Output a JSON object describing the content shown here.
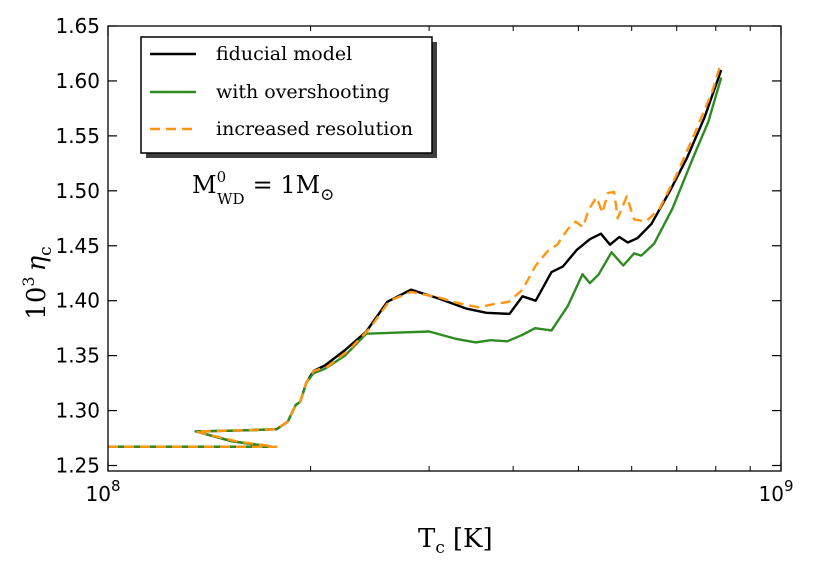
{
  "chart_data": {
    "type": "line",
    "xscale": "log",
    "xlim": [
      100000000,
      1000000000
    ],
    "ylim": [
      1.245,
      1.65
    ],
    "x_ticks": [
      {
        "value": 100000000,
        "base": "10",
        "exp": "8"
      },
      {
        "value": 1000000000,
        "base": "10",
        "exp": "9"
      }
    ],
    "y_ticks": [
      {
        "value": 1.25,
        "label": "1.25"
      },
      {
        "value": 1.3,
        "label": "1.30"
      },
      {
        "value": 1.35,
        "label": "1.35"
      },
      {
        "value": 1.4,
        "label": "1.40"
      },
      {
        "value": 1.45,
        "label": "1.45"
      },
      {
        "value": 1.5,
        "label": "1.50"
      },
      {
        "value": 1.55,
        "label": "1.55"
      },
      {
        "value": 1.6,
        "label": "1.60"
      },
      {
        "value": 1.65,
        "label": "1.65"
      }
    ],
    "xlabel": {
      "main": "T",
      "sub": "c",
      "unit": "[K]"
    },
    "ylabel": {
      "base": "10",
      "exp": "3",
      "main": "η",
      "sub": "c"
    },
    "annotation": {
      "main": "M",
      "sup": "0",
      "sub": "WD",
      "equals": "= 1M",
      "symbol": "⊙"
    },
    "legend_position": "top-left",
    "series": [
      {
        "name": "fiducial model",
        "color": "#000000",
        "dash": "solid",
        "points": [
          [
            100000000,
            1.267
          ],
          [
            140000000,
            1.267
          ],
          [
            175000000,
            1.267
          ],
          [
            153000000,
            1.272
          ],
          [
            135000000,
            1.281
          ],
          [
            160000000,
            1.282
          ],
          [
            178000000,
            1.283
          ],
          [
            185000000,
            1.29
          ],
          [
            190000000,
            1.305
          ],
          [
            193000000,
            1.308
          ],
          [
            197000000,
            1.325
          ],
          [
            202000000,
            1.336
          ],
          [
            210000000,
            1.341
          ],
          [
            225000000,
            1.355
          ],
          [
            242000000,
            1.372
          ],
          [
            260000000,
            1.399
          ],
          [
            282000000,
            1.41
          ],
          [
            310000000,
            1.402
          ],
          [
            340000000,
            1.393
          ],
          [
            365000000,
            1.389
          ],
          [
            395000000,
            1.388
          ],
          [
            413000000,
            1.404
          ],
          [
            432000000,
            1.4
          ],
          [
            456000000,
            1.426
          ],
          [
            474000000,
            1.431
          ],
          [
            497000000,
            1.446
          ],
          [
            520000000,
            1.456
          ],
          [
            540000000,
            1.461
          ],
          [
            557000000,
            1.451
          ],
          [
            575000000,
            1.458
          ],
          [
            592000000,
            1.453
          ],
          [
            612000000,
            1.457
          ],
          [
            642000000,
            1.47
          ],
          [
            684000000,
            1.5
          ],
          [
            725000000,
            1.53
          ],
          [
            770000000,
            1.567
          ],
          [
            815000000,
            1.61
          ]
        ]
      },
      {
        "name": "with overshooting",
        "color": "#2e8b22",
        "dash": "solid",
        "points": [
          [
            100000000,
            1.267
          ],
          [
            140000000,
            1.267
          ],
          [
            175000000,
            1.267
          ],
          [
            153000000,
            1.272
          ],
          [
            135000000,
            1.281
          ],
          [
            160000000,
            1.282
          ],
          [
            178000000,
            1.283
          ],
          [
            185000000,
            1.29
          ],
          [
            190000000,
            1.305
          ],
          [
            193000000,
            1.308
          ],
          [
            197000000,
            1.325
          ],
          [
            202000000,
            1.334
          ],
          [
            210000000,
            1.338
          ],
          [
            225000000,
            1.35
          ],
          [
            242000000,
            1.37
          ],
          [
            270000000,
            1.371
          ],
          [
            300000000,
            1.372
          ],
          [
            330000000,
            1.365
          ],
          [
            352000000,
            1.362
          ],
          [
            370000000,
            1.364
          ],
          [
            392000000,
            1.363
          ],
          [
            413000000,
            1.369
          ],
          [
            431000000,
            1.375
          ],
          [
            456000000,
            1.373
          ],
          [
            482000000,
            1.395
          ],
          [
            507000000,
            1.424
          ],
          [
            520000000,
            1.416
          ],
          [
            536000000,
            1.424
          ],
          [
            560000000,
            1.444
          ],
          [
            583000000,
            1.432
          ],
          [
            605000000,
            1.443
          ],
          [
            620000000,
            1.441
          ],
          [
            648000000,
            1.452
          ],
          [
            690000000,
            1.484
          ],
          [
            740000000,
            1.53
          ],
          [
            780000000,
            1.563
          ],
          [
            815000000,
            1.603
          ]
        ]
      },
      {
        "name": "increased resolution",
        "color": "#ff9511",
        "dash": "dashed",
        "points": [
          [
            100000000,
            1.267
          ],
          [
            140000000,
            1.267
          ],
          [
            178000000,
            1.267
          ],
          [
            155000000,
            1.272
          ],
          [
            135000000,
            1.281
          ],
          [
            160000000,
            1.282
          ],
          [
            178000000,
            1.283
          ],
          [
            185000000,
            1.29
          ],
          [
            190000000,
            1.305
          ],
          [
            193000000,
            1.308
          ],
          [
            197000000,
            1.325
          ],
          [
            202000000,
            1.336
          ],
          [
            212000000,
            1.34
          ],
          [
            228000000,
            1.355
          ],
          [
            245000000,
            1.375
          ],
          [
            262000000,
            1.4
          ],
          [
            282000000,
            1.408
          ],
          [
            310000000,
            1.403
          ],
          [
            330000000,
            1.398
          ],
          [
            355000000,
            1.394
          ],
          [
            375000000,
            1.397
          ],
          [
            394000000,
            1.399
          ],
          [
            413000000,
            1.41
          ],
          [
            432000000,
            1.432
          ],
          [
            450000000,
            1.445
          ],
          [
            465000000,
            1.451
          ],
          [
            482000000,
            1.465
          ],
          [
            495000000,
            1.472
          ],
          [
            508000000,
            1.467
          ],
          [
            518000000,
            1.483
          ],
          [
            532000000,
            1.494
          ],
          [
            543000000,
            1.48
          ],
          [
            553000000,
            1.498
          ],
          [
            565000000,
            1.499
          ],
          [
            572000000,
            1.475
          ],
          [
            590000000,
            1.495
          ],
          [
            605000000,
            1.474
          ],
          [
            630000000,
            1.472
          ],
          [
            660000000,
            1.484
          ],
          [
            700000000,
            1.515
          ],
          [
            745000000,
            1.553
          ],
          [
            790000000,
            1.59
          ],
          [
            815000000,
            1.617
          ]
        ]
      }
    ]
  }
}
